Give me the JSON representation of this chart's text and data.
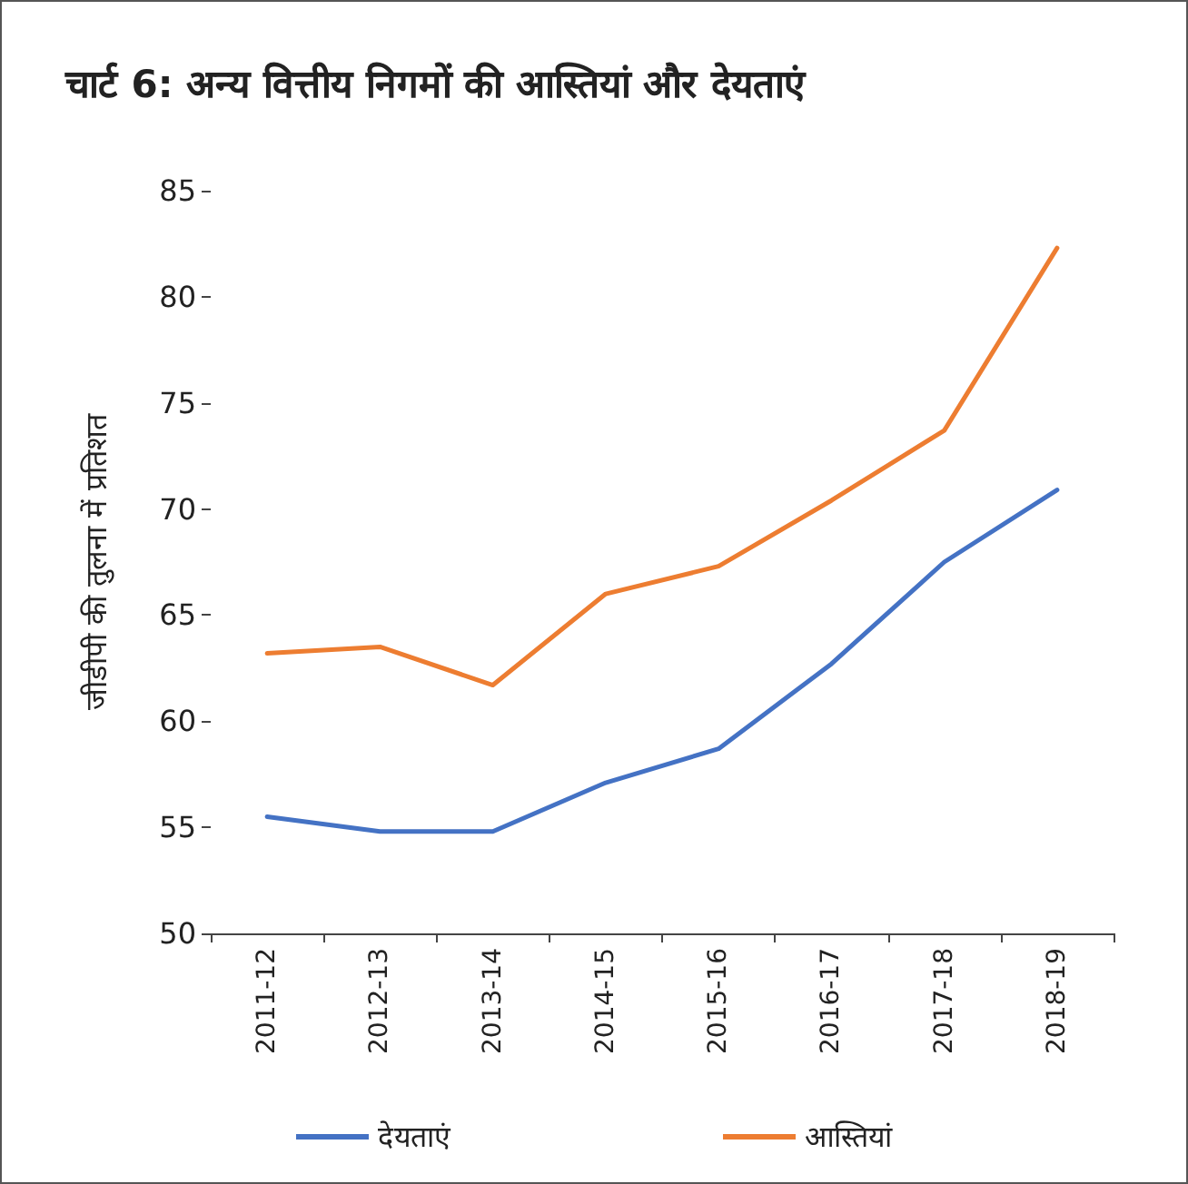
{
  "chart_data": {
    "type": "line",
    "title": "चार्ट 6: अन्य वित्तीय निगमों की आस्तियां और देयताएं",
    "ylabel": "जीडीपी की तुलना में प्रतिशत",
    "categories": [
      "2011-12",
      "2012-13",
      "2013-14",
      "2014-15",
      "2015-16",
      "2016-17",
      "2017-18",
      "2018-19"
    ],
    "series": [
      {
        "name": "देयताएं",
        "color": "#4472c4",
        "values": [
          55.5,
          54.8,
          54.8,
          57.1,
          58.7,
          62.7,
          67.5,
          70.9
        ]
      },
      {
        "name": "आस्तियां",
        "color": "#ed7d31",
        "values": [
          63.2,
          63.5,
          61.7,
          66.0,
          67.3,
          70.4,
          73.7,
          82.3
        ]
      }
    ],
    "ylim": [
      50,
      85
    ],
    "yticks": [
      50,
      55,
      60,
      65,
      70,
      75,
      80,
      85
    ],
    "grid": false,
    "legend": "bottom",
    "marker": "none",
    "line_style": "solid"
  }
}
